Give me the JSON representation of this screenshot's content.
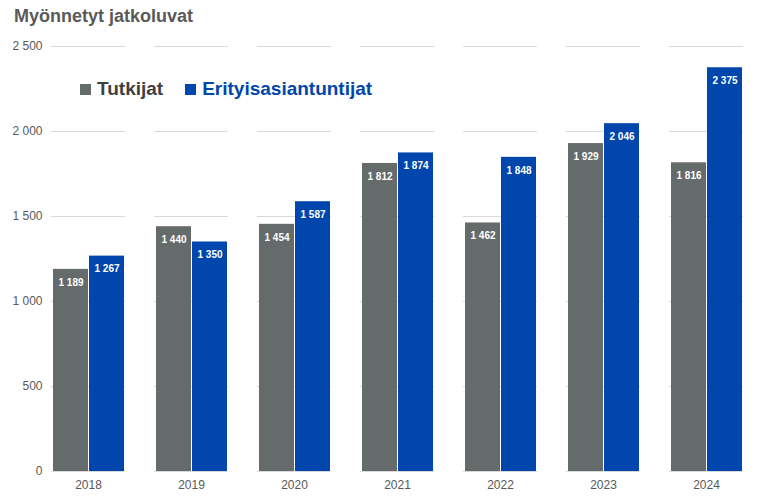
{
  "chart_data": {
    "type": "bar",
    "title": "Myönnetyt jatkoluvat",
    "categories": [
      "2018",
      "2019",
      "2020",
      "2021",
      "2022",
      "2023",
      "2024"
    ],
    "series": [
      {
        "name": "Tutkijat",
        "color": "#656b6b",
        "values": [
          1189,
          1440,
          1454,
          1812,
          1462,
          1929,
          1816
        ],
        "value_labels": [
          "1 189",
          "1 440",
          "1 454",
          "1 812",
          "1 462",
          "1 929",
          "1 816"
        ]
      },
      {
        "name": "Erityisasiantuntijat",
        "color": "#0046ad",
        "values": [
          1267,
          1350,
          1587,
          1874,
          1848,
          2046,
          2375
        ],
        "value_labels": [
          "1 267",
          "1 350",
          "1 587",
          "1 874",
          "1 848",
          "2 046",
          "2 375"
        ]
      }
    ],
    "ylim": [
      0,
      2500
    ],
    "yticks": [
      0,
      500,
      {
        "value": 1000,
        "label": "1 000"
      },
      {
        "value": 1500,
        "label": "1 500"
      },
      {
        "value": 2000,
        "label": "2 000"
      },
      {
        "value": 2500,
        "label": "2 500"
      }
    ],
    "grid": true,
    "legend": "top-left",
    "data_labels": true
  }
}
